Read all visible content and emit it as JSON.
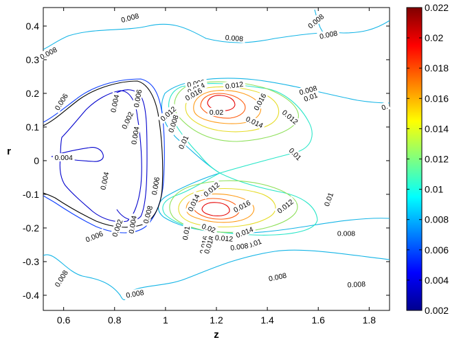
{
  "chart_data": {
    "type": "contour",
    "xlabel": "z",
    "ylabel": "r",
    "xlim": [
      0.52,
      1.88
    ],
    "ylim": [
      -0.445,
      0.455
    ],
    "xticks": [
      "0.6",
      "0.8",
      "1",
      "1.2",
      "1.4",
      "1.6",
      "1.8"
    ],
    "yticks": [
      "0.4",
      "0.3",
      "0.2",
      "0.1",
      "0",
      "-0.1",
      "-0.2",
      "-0.3",
      "-0.4"
    ],
    "colorbar": {
      "range": [
        0.002,
        0.022
      ],
      "ticks": [
        "0.022",
        "0.02",
        "0.018",
        "0.016",
        "0.014",
        "0.012",
        "0.01",
        "0.008",
        "0.006",
        "0.004",
        "0.002"
      ],
      "colormap": "jet",
      "colors": [
        "#00008f",
        "#0000ff",
        "#0080ff",
        "#00ffff",
        "#80ff80",
        "#ffff00",
        "#ff8000",
        "#ff0000",
        "#800000"
      ]
    },
    "contour_levels": [
      {
        "level": 0.004,
        "color": "#0000cd"
      },
      {
        "level": 0.006,
        "color": "#0a3cff"
      },
      {
        "level": 0.008,
        "color": "#12b4e6"
      },
      {
        "level": 0.01,
        "color": "#28e6c8"
      },
      {
        "level": 0.012,
        "color": "#8ee05a"
      },
      {
        "level": 0.014,
        "color": "#e6dc28"
      },
      {
        "level": 0.016,
        "color": "#ff9a14"
      },
      {
        "level": 0.018,
        "color": "#ff5a0a"
      },
      {
        "level": 0.02,
        "color": "#e60000"
      }
    ],
    "inline_labels": [
      {
        "text": "0.008",
        "z": 0.54,
        "r": 0.32,
        "angle": -28
      },
      {
        "text": "0.008",
        "z": 0.86,
        "r": 0.425,
        "angle": -15
      },
      {
        "text": "0.008",
        "z": 1.27,
        "r": 0.365,
        "angle": 5
      },
      {
        "text": "0.008",
        "z": 1.59,
        "r": 0.415,
        "angle": -40
      },
      {
        "text": "0.008",
        "z": 1.64,
        "r": 0.375,
        "angle": -12
      },
      {
        "text": "0.006",
        "z": 0.59,
        "r": 0.175,
        "angle": -58
      },
      {
        "text": "0.004",
        "z": 0.8,
        "r": 0.17,
        "angle": -78
      },
      {
        "text": "0.002",
        "z": 0.85,
        "r": 0.12,
        "angle": -65
      },
      {
        "text": "0.006",
        "z": 0.89,
        "r": 0.185,
        "angle": -80
      },
      {
        "text": "0.004",
        "z": 0.88,
        "r": 0.075,
        "angle": -80
      },
      {
        "text": "0.008",
        "z": 1.03,
        "r": 0.11,
        "angle": -72
      },
      {
        "text": "0.01",
        "z": 1.07,
        "r": 0.055,
        "angle": -65
      },
      {
        "text": "0.012",
        "z": 1.01,
        "r": 0.14,
        "angle": -42
      },
      {
        "text": "0.008",
        "z": 1.12,
        "r": 0.23,
        "angle": -10
      },
      {
        "text": "0.014",
        "z": 1.12,
        "r": 0.215,
        "angle": -25
      },
      {
        "text": "0.016",
        "z": 1.11,
        "r": 0.198,
        "angle": -30
      },
      {
        "text": "0.012",
        "z": 1.27,
        "r": 0.225,
        "angle": -8
      },
      {
        "text": "0.02",
        "z": 1.2,
        "r": 0.145,
        "angle": 0
      },
      {
        "text": "0.016",
        "z": 1.37,
        "r": 0.175,
        "angle": -62
      },
      {
        "text": "0.014",
        "z": 1.35,
        "r": 0.115,
        "angle": 25
      },
      {
        "text": "0.012",
        "z": 1.49,
        "r": 0.13,
        "angle": 40
      },
      {
        "text": "0.008",
        "z": 1.56,
        "r": 0.21,
        "angle": -15
      },
      {
        "text": "0.01",
        "z": 1.57,
        "r": 0.19,
        "angle": -20
      },
      {
        "text": "0.01",
        "z": 1.51,
        "r": 0.02,
        "angle": 45
      },
      {
        "text": "0.",
        "z": 1.86,
        "r": 0.16,
        "angle": -20
      },
      {
        "text": "0.004",
        "z": 0.6,
        "r": 0.01,
        "angle": 0
      },
      {
        "text": "0.004",
        "z": 0.76,
        "r": -0.06,
        "angle": -78
      },
      {
        "text": "0.006",
        "z": 0.96,
        "r": -0.075,
        "angle": -80
      },
      {
        "text": "0.012",
        "z": 1.18,
        "r": -0.085,
        "angle": -40
      },
      {
        "text": "0.008",
        "z": 0.93,
        "r": -0.16,
        "angle": -75
      },
      {
        "text": "0.004",
        "z": 0.87,
        "r": -0.19,
        "angle": -80
      },
      {
        "text": "0.002",
        "z": 0.81,
        "r": -0.2,
        "angle": -70
      },
      {
        "text": "0.01",
        "z": 1.08,
        "r": -0.215,
        "angle": -80
      },
      {
        "text": "0.016",
        "z": 1.15,
        "r": -0.25,
        "angle": -78
      },
      {
        "text": "0.014",
        "z": 1.11,
        "r": -0.125,
        "angle": -65
      },
      {
        "text": "0.018",
        "z": 1.17,
        "r": -0.25,
        "angle": -72
      },
      {
        "text": "0.02",
        "z": 1.17,
        "r": -0.2,
        "angle": 20
      },
      {
        "text": "0.016",
        "z": 1.3,
        "r": -0.135,
        "angle": -28
      },
      {
        "text": "0.012",
        "z": 1.47,
        "r": -0.135,
        "angle": -38
      },
      {
        "text": "0.01",
        "z": 1.64,
        "r": -0.115,
        "angle": -70
      },
      {
        "text": "0.014",
        "z": 1.31,
        "r": -0.212,
        "angle": -22
      },
      {
        "text": "0.012",
        "z": 1.23,
        "r": -0.23,
        "angle": 5
      },
      {
        "text": "0.01",
        "z": 1.35,
        "r": -0.245,
        "angle": -20
      },
      {
        "text": "0.008",
        "z": 1.29,
        "r": -0.255,
        "angle": -8
      },
      {
        "text": "0.008",
        "z": 1.71,
        "r": -0.215,
        "angle": 0
      },
      {
        "text": "0.006",
        "z": 0.72,
        "r": -0.225,
        "angle": -22
      },
      {
        "text": "0.008",
        "z": 0.59,
        "r": -0.35,
        "angle": -58
      },
      {
        "text": "0.008",
        "z": 0.88,
        "r": -0.395,
        "angle": -10
      },
      {
        "text": "0.008",
        "z": 1.44,
        "r": -0.345,
        "angle": -12
      },
      {
        "text": "0.008",
        "z": 1.75,
        "r": -0.367,
        "angle": -3
      }
    ]
  }
}
